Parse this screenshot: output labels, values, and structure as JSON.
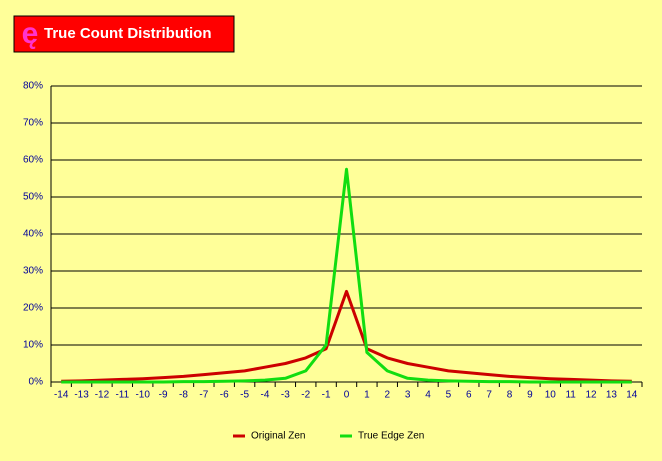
{
  "chart_data": {
    "type": "line",
    "title": "True Count Distribution",
    "categories": [
      "-14",
      "-13",
      "-12",
      "-11",
      "-10",
      "-9",
      "-8",
      "-7",
      "-6",
      "-5",
      "-4",
      "-3",
      "-2",
      "-1",
      "0",
      "1",
      "2",
      "3",
      "4",
      "5",
      "6",
      "7",
      "8",
      "9",
      "10",
      "11",
      "12",
      "13",
      "14"
    ],
    "series": [
      {
        "name": "Original Zen",
        "color": "#cc0000",
        "values": [
          0.2,
          0.3,
          0.5,
          0.7,
          0.9,
          1.2,
          1.5,
          2,
          2.5,
          3,
          4,
          5,
          6.5,
          9,
          24.5,
          9,
          6.5,
          5,
          4,
          3,
          2.5,
          2,
          1.5,
          1.2,
          0.9,
          0.7,
          0.5,
          0.3,
          0.2
        ]
      },
      {
        "name": "True Edge Zen",
        "color": "#11dd11",
        "values": [
          0,
          0,
          0,
          0,
          0,
          0,
          0.1,
          0.1,
          0.2,
          0.3,
          0.5,
          1,
          3,
          10,
          57.5,
          8,
          3,
          1,
          0.5,
          0.3,
          0.2,
          0.1,
          0.1,
          0,
          0,
          0,
          0,
          0,
          0
        ]
      }
    ],
    "ylim": [
      0,
      80
    ],
    "yticks": [
      {
        "value": 0,
        "label": "0%"
      },
      {
        "value": 10,
        "label": "10%"
      },
      {
        "value": 20,
        "label": "20%"
      },
      {
        "value": 30,
        "label": "30%"
      },
      {
        "value": 40,
        "label": "40%"
      },
      {
        "value": 50,
        "label": "50%"
      },
      {
        "value": 60,
        "label": "60%"
      },
      {
        "value": 70,
        "label": "70%"
      },
      {
        "value": 80,
        "label": "80%"
      }
    ],
    "grid": true,
    "legend": "bottom"
  }
}
